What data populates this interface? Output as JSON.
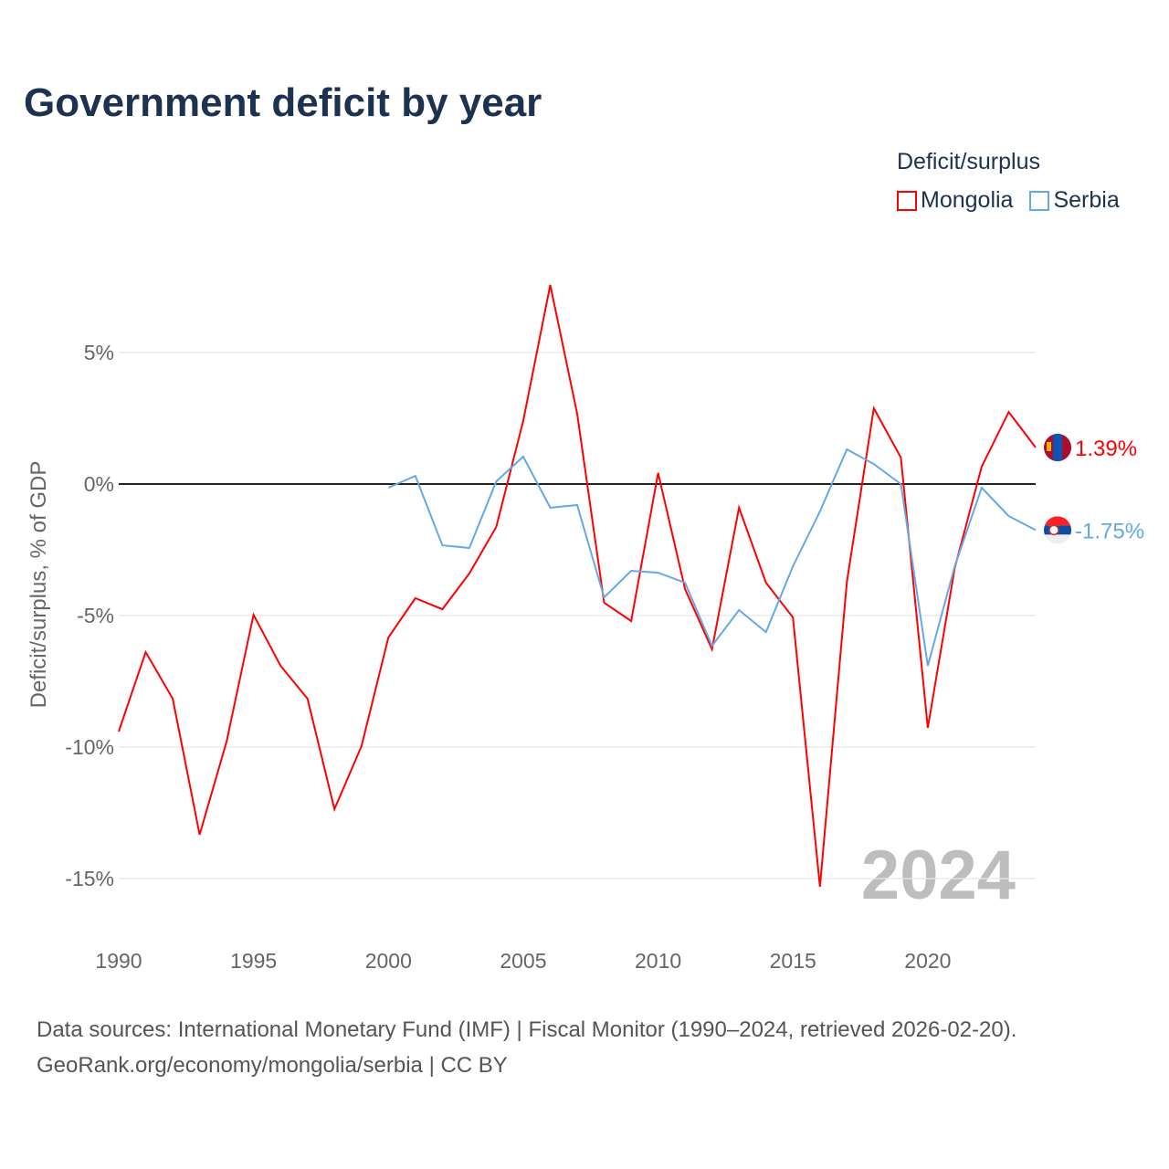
{
  "header": {
    "title": "Government deficit by year"
  },
  "legend": {
    "title": "Deficit/surplus",
    "items": [
      {
        "label": "Mongolia",
        "color": "#ff0000"
      },
      {
        "label": "Serbia",
        "color": "#64a8e8"
      }
    ]
  },
  "footer": {
    "line1": "Data sources: International Monetary Fund (IMF) | Fiscal Monitor (1990–2024, retrieved 2026-02-20).",
    "line2": "GeoRank.org/economy/mongolia/serbia | CC BY"
  },
  "chart_data": {
    "type": "line",
    "title": "Government deficit by year",
    "ylabel": "Deficit/surplus, % of GDP",
    "xlabel": "",
    "xlim": [
      1990,
      2024
    ],
    "ylim": [
      -17,
      10
    ],
    "yticks": [
      5,
      0,
      -5,
      -10,
      -15
    ],
    "ytick_labels": [
      "5%",
      "0%",
      "-5%",
      "-10%",
      "-15%"
    ],
    "xticks": [
      1990,
      1995,
      2000,
      2005,
      2010,
      2015,
      2020
    ],
    "xtick_labels": [
      "1990",
      "1995",
      "2000",
      "2005",
      "2010",
      "2015",
      "2020"
    ],
    "year_watermark": "2024",
    "series": [
      {
        "name": "Mongolia",
        "color": "#ff0000",
        "end_label": "1.39%",
        "flag": "mongolia-flag",
        "x": [
          1990,
          1991,
          1992,
          1993,
          1994,
          1995,
          1996,
          1997,
          1998,
          1999,
          2000,
          2001,
          2002,
          2003,
          2004,
          2005,
          2006,
          2007,
          2008,
          2009,
          2010,
          2011,
          2012,
          2013,
          2014,
          2015,
          2016,
          2017,
          2018,
          2019,
          2020,
          2021,
          2022,
          2023,
          2024
        ],
        "values": [
          -9.41,
          -6.39,
          -8.16,
          -13.33,
          -9.79,
          -4.97,
          -6.91,
          -8.16,
          -12.36,
          -9.97,
          -5.83,
          -4.34,
          -4.76,
          -3.4,
          -1.63,
          2.4,
          7.57,
          2.67,
          -4.51,
          -5.21,
          0.42,
          -3.99,
          -6.28,
          -0.9,
          -3.75,
          -5.07,
          -15.31,
          -3.72,
          2.88,
          1.01,
          -9.27,
          -3.19,
          0.66,
          2.74,
          1.39
        ]
      },
      {
        "name": "Serbia",
        "color": "#64a8e8",
        "end_label": "-1.75%",
        "flag": "serbia-flag",
        "x": [
          2000,
          2001,
          2002,
          2003,
          2004,
          2005,
          2006,
          2007,
          2008,
          2009,
          2010,
          2011,
          2012,
          2013,
          2014,
          2015,
          2016,
          2017,
          2018,
          2019,
          2020,
          2021,
          2022,
          2023,
          2024
        ],
        "values": [
          -0.14,
          0.31,
          -2.33,
          -2.43,
          0.1,
          1.04,
          -0.9,
          -0.8,
          -4.31,
          -3.3,
          -3.37,
          -3.75,
          -6.15,
          -4.79,
          -5.63,
          -3.13,
          -1.04,
          1.32,
          0.76,
          0.0,
          -6.91,
          -3.13,
          -0.14,
          -1.22,
          -1.75
        ]
      }
    ]
  }
}
